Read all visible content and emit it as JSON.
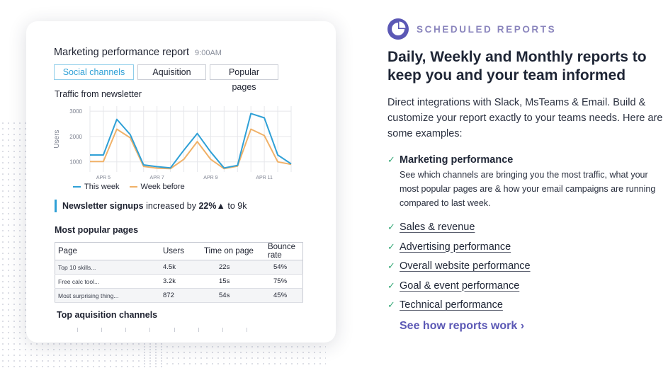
{
  "colors": {
    "this_week": "#2fa0d6",
    "week_before": "#f0b168",
    "accent": "#5b58b5",
    "check": "#3aaa7a",
    "eyebrow": "#8a85bd"
  },
  "report": {
    "title": "Marketing performance report",
    "time": "9:00AM",
    "tabs": [
      "Social channels",
      "Aquisition",
      "Popular pages"
    ],
    "active_tab": "Social channels"
  },
  "chart_data": {
    "type": "line",
    "title": "Traffic from newsletter",
    "ylabel": "Users",
    "xlabel": "",
    "ylim": [
      600,
      3200
    ],
    "yticks": [
      1000,
      2000,
      3000
    ],
    "xticks": [
      {
        "label": "APR 5",
        "at": 1
      },
      {
        "label": "APR 7",
        "at": 5
      },
      {
        "label": "APR 9",
        "at": 9
      },
      {
        "label": "APR 11",
        "at": 13
      }
    ],
    "grid": true,
    "legend_position": "bottom",
    "x": [
      0,
      1,
      2,
      3,
      4,
      5,
      6,
      7,
      8,
      9,
      10,
      11,
      12,
      13,
      14,
      15
    ],
    "series": [
      {
        "name": "This week",
        "color": "#2fa0d6",
        "values": [
          1270,
          1270,
          2680,
          2080,
          880,
          810,
          760,
          1460,
          2120,
          1390,
          760,
          860,
          2910,
          2740,
          1270,
          920
        ]
      },
      {
        "name": "Week before",
        "color": "#f0b168",
        "values": [
          1010,
          1010,
          2290,
          1950,
          820,
          750,
          730,
          1100,
          1800,
          1100,
          730,
          830,
          2290,
          2040,
          1000,
          900
        ]
      }
    ]
  },
  "signup": {
    "label": "Newsletter signups",
    "mid": "increased by",
    "value": "22%▲",
    "suffix": "to 9k"
  },
  "pages": {
    "title": "Most popular pages",
    "headers": [
      "Page",
      "Users",
      "Time on page",
      "Bounce rate"
    ],
    "rows": [
      [
        "Top 10 skills...",
        "4.5k",
        "22s",
        "54%"
      ],
      [
        "Free calc tool...",
        "3.2k",
        "15s",
        "75%"
      ],
      [
        "Most surprising thing...",
        "872",
        "54s",
        "45%"
      ]
    ]
  },
  "acquisition_title": "Top aquisition channels",
  "right": {
    "eyebrow": "SCHEDULED REPORTS",
    "headline": "Daily, Weekly and Monthly reports to keep you and your team informed",
    "description": "Direct integrations with Slack, MsTeams & Email. Build & customize your report exactly to your teams needs. Here are some examples:",
    "feature_title": "Marketing performance",
    "feature_desc": "See which channels are bringing you the most traffic, what your most popular pages are & how your email campaigns are running compared to last week.",
    "links": [
      "Sales & revenue",
      "Advertising performance",
      "Overall website performance",
      "Goal & event performance",
      "Technical performance"
    ],
    "cta": "See how reports work ›"
  }
}
